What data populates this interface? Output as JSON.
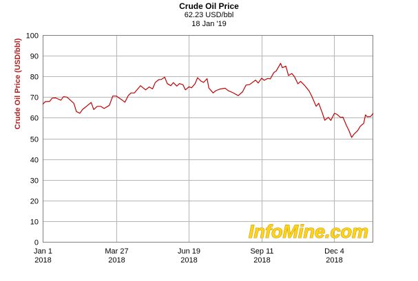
{
  "header": {
    "title": "Crude Oil Price",
    "subtitle": "62.23 USD/bbl",
    "date": "18 Jan '19"
  },
  "watermark": "InfoMine.com",
  "colors": {
    "line": "#c00000",
    "ylabel": "#b22222",
    "grid": "#b5b5b5",
    "plot_border": "#7f7f7f",
    "watermark_fill": "#ffd319",
    "watermark_stroke": "#c89600"
  },
  "chart_data": {
    "type": "line",
    "title": "Crude Oil Price",
    "ylabel": "Crude Oil Price (USD/bbl)",
    "xlabel": "",
    "ylim": [
      0,
      100
    ],
    "yticks": [
      0,
      10,
      20,
      30,
      40,
      50,
      60,
      70,
      80,
      90,
      100
    ],
    "grid": true,
    "xticks": [
      {
        "date": "2018-01-01",
        "label": "Jan 1",
        "year": "2018"
      },
      {
        "date": "2018-03-27",
        "label": "Mar 27",
        "year": "2018"
      },
      {
        "date": "2018-06-19",
        "label": "Jun 19",
        "year": "2018"
      },
      {
        "date": "2018-09-11",
        "label": "Sep 11",
        "year": "2018"
      },
      {
        "date": "2018-12-04",
        "label": "Dec 4",
        "year": "2018"
      }
    ],
    "xlim": [
      "2018-01-01",
      "2019-01-18"
    ],
    "series": [
      {
        "points": [
          [
            "2018-01-01",
            66.5
          ],
          [
            "2018-01-04",
            67.8
          ],
          [
            "2018-01-09",
            67.9
          ],
          [
            "2018-01-12",
            69.5
          ],
          [
            "2018-01-16",
            69.6
          ],
          [
            "2018-01-22",
            68.5
          ],
          [
            "2018-01-25",
            70.2
          ],
          [
            "2018-01-29",
            70.0
          ],
          [
            "2018-02-02",
            68.5
          ],
          [
            "2018-02-06",
            67.0
          ],
          [
            "2018-02-09",
            63.0
          ],
          [
            "2018-02-13",
            62.2
          ],
          [
            "2018-02-16",
            64.0
          ],
          [
            "2018-02-20",
            65.3
          ],
          [
            "2018-02-26",
            67.4
          ],
          [
            "2018-03-01",
            64.0
          ],
          [
            "2018-03-05",
            65.5
          ],
          [
            "2018-03-09",
            65.5
          ],
          [
            "2018-03-13",
            64.5
          ],
          [
            "2018-03-19",
            66.0
          ],
          [
            "2018-03-23",
            70.5
          ],
          [
            "2018-03-27",
            70.5
          ],
          [
            "2018-04-03",
            68.5
          ],
          [
            "2018-04-06",
            67.5
          ],
          [
            "2018-04-10",
            70.8
          ],
          [
            "2018-04-13",
            72.0
          ],
          [
            "2018-04-17",
            72.0
          ],
          [
            "2018-04-24",
            75.5
          ],
          [
            "2018-04-30",
            73.5
          ],
          [
            "2018-05-04",
            74.9
          ],
          [
            "2018-05-08",
            74.0
          ],
          [
            "2018-05-11",
            77.0
          ],
          [
            "2018-05-15",
            78.4
          ],
          [
            "2018-05-18",
            78.5
          ],
          [
            "2018-05-22",
            79.6
          ],
          [
            "2018-05-25",
            76.5
          ],
          [
            "2018-05-29",
            75.5
          ],
          [
            "2018-06-01",
            77.0
          ],
          [
            "2018-06-05",
            75.3
          ],
          [
            "2018-06-08",
            76.5
          ],
          [
            "2018-06-12",
            76.0
          ],
          [
            "2018-06-15",
            73.5
          ],
          [
            "2018-06-19",
            75.0
          ],
          [
            "2018-06-22",
            74.5
          ],
          [
            "2018-06-26",
            76.4
          ],
          [
            "2018-06-29",
            79.4
          ],
          [
            "2018-07-03",
            77.7
          ],
          [
            "2018-07-06",
            77.1
          ],
          [
            "2018-07-10",
            78.9
          ],
          [
            "2018-07-12",
            74.4
          ],
          [
            "2018-07-17",
            72.0
          ],
          [
            "2018-07-20",
            73.1
          ],
          [
            "2018-07-25",
            73.9
          ],
          [
            "2018-07-31",
            74.3
          ],
          [
            "2018-08-03",
            73.2
          ],
          [
            "2018-08-09",
            72.1
          ],
          [
            "2018-08-15",
            70.7
          ],
          [
            "2018-08-20",
            72.6
          ],
          [
            "2018-08-24",
            75.8
          ],
          [
            "2018-08-28",
            76.0
          ],
          [
            "2018-09-04",
            78.2
          ],
          [
            "2018-09-07",
            76.8
          ],
          [
            "2018-09-11",
            79.1
          ],
          [
            "2018-09-14",
            78.1
          ],
          [
            "2018-09-18",
            79.0
          ],
          [
            "2018-09-21",
            78.8
          ],
          [
            "2018-09-25",
            81.8
          ],
          [
            "2018-09-28",
            82.7
          ],
          [
            "2018-10-03",
            86.3
          ],
          [
            "2018-10-05",
            84.2
          ],
          [
            "2018-10-09",
            85.0
          ],
          [
            "2018-10-12",
            80.4
          ],
          [
            "2018-10-16",
            81.4
          ],
          [
            "2018-10-19",
            79.8
          ],
          [
            "2018-10-23",
            76.4
          ],
          [
            "2018-10-26",
            77.6
          ],
          [
            "2018-10-31",
            75.5
          ],
          [
            "2018-11-05",
            72.9
          ],
          [
            "2018-11-08",
            70.4
          ],
          [
            "2018-11-13",
            65.5
          ],
          [
            "2018-11-16",
            67.0
          ],
          [
            "2018-11-20",
            62.5
          ],
          [
            "2018-11-23",
            58.8
          ],
          [
            "2018-11-27",
            60.2
          ],
          [
            "2018-11-30",
            58.7
          ],
          [
            "2018-12-04",
            62.1
          ],
          [
            "2018-12-07",
            61.7
          ],
          [
            "2018-12-11",
            60.2
          ],
          [
            "2018-12-14",
            60.3
          ],
          [
            "2018-12-18",
            56.3
          ],
          [
            "2018-12-21",
            53.8
          ],
          [
            "2018-12-24",
            50.5
          ],
          [
            "2018-12-27",
            52.2
          ],
          [
            "2018-12-31",
            53.8
          ],
          [
            "2019-01-03",
            55.9
          ],
          [
            "2019-01-07",
            57.3
          ],
          [
            "2019-01-09",
            61.4
          ],
          [
            "2019-01-11",
            60.5
          ],
          [
            "2019-01-15",
            60.6
          ],
          [
            "2019-01-18",
            62.2
          ]
        ]
      }
    ]
  }
}
